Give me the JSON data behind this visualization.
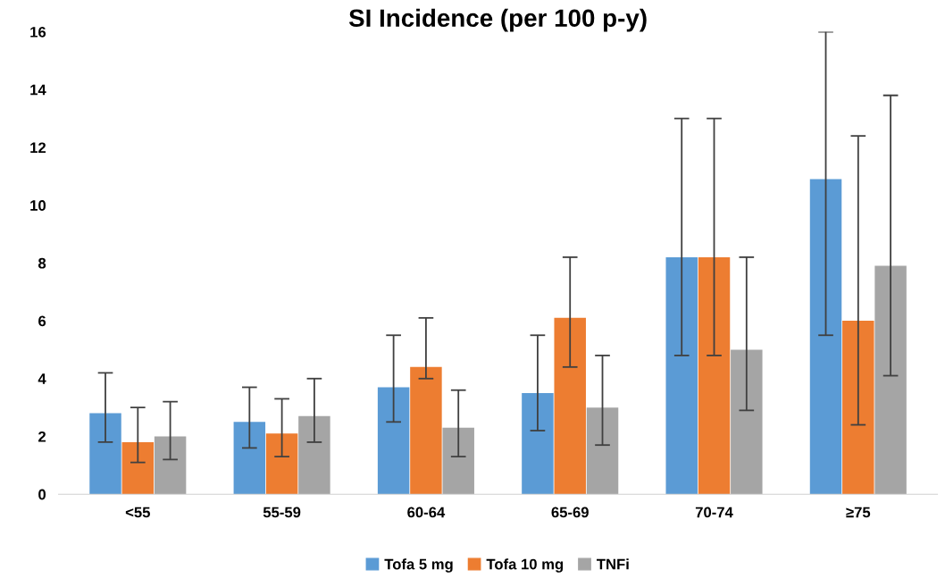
{
  "chart_data": {
    "type": "bar",
    "title": "SI Incidence (per 100 p-y)",
    "categories": [
      "<55",
      "55-59",
      "60-64",
      "65-69",
      "70-74",
      "≥75"
    ],
    "series": [
      {
        "name": "Tofa 5 mg",
        "color": "#5b9bd5",
        "values": [
          2.8,
          2.5,
          3.7,
          3.5,
          8.2,
          10.9
        ],
        "errors": [
          [
            1.8,
            4.2
          ],
          [
            1.6,
            3.7
          ],
          [
            2.5,
            5.5
          ],
          [
            2.2,
            5.5
          ],
          [
            4.8,
            13.0
          ],
          [
            5.5,
            16.0
          ]
        ]
      },
      {
        "name": "Tofa 10 mg",
        "color": "#ed7d31",
        "values": [
          1.8,
          2.1,
          4.4,
          6.1,
          8.2,
          6.0
        ],
        "errors": [
          [
            1.1,
            3.0
          ],
          [
            1.3,
            3.3
          ],
          [
            4.0,
            6.1
          ],
          [
            4.4,
            8.2
          ],
          [
            4.8,
            13.0
          ],
          [
            2.4,
            12.4
          ]
        ]
      },
      {
        "name": "TNFi",
        "color": "#a5a5a5",
        "values": [
          2.0,
          2.7,
          2.3,
          3.0,
          5.0,
          7.9
        ],
        "errors": [
          [
            1.2,
            3.2
          ],
          [
            1.8,
            4.0
          ],
          [
            1.3,
            3.6
          ],
          [
            1.7,
            4.8
          ],
          [
            2.9,
            8.2
          ],
          [
            4.1,
            13.8
          ]
        ]
      }
    ],
    "ylim": [
      0,
      16
    ],
    "yticks": [
      0,
      2,
      4,
      6,
      8,
      10,
      12,
      14,
      16
    ],
    "grid": false,
    "legend": "bottom"
  }
}
